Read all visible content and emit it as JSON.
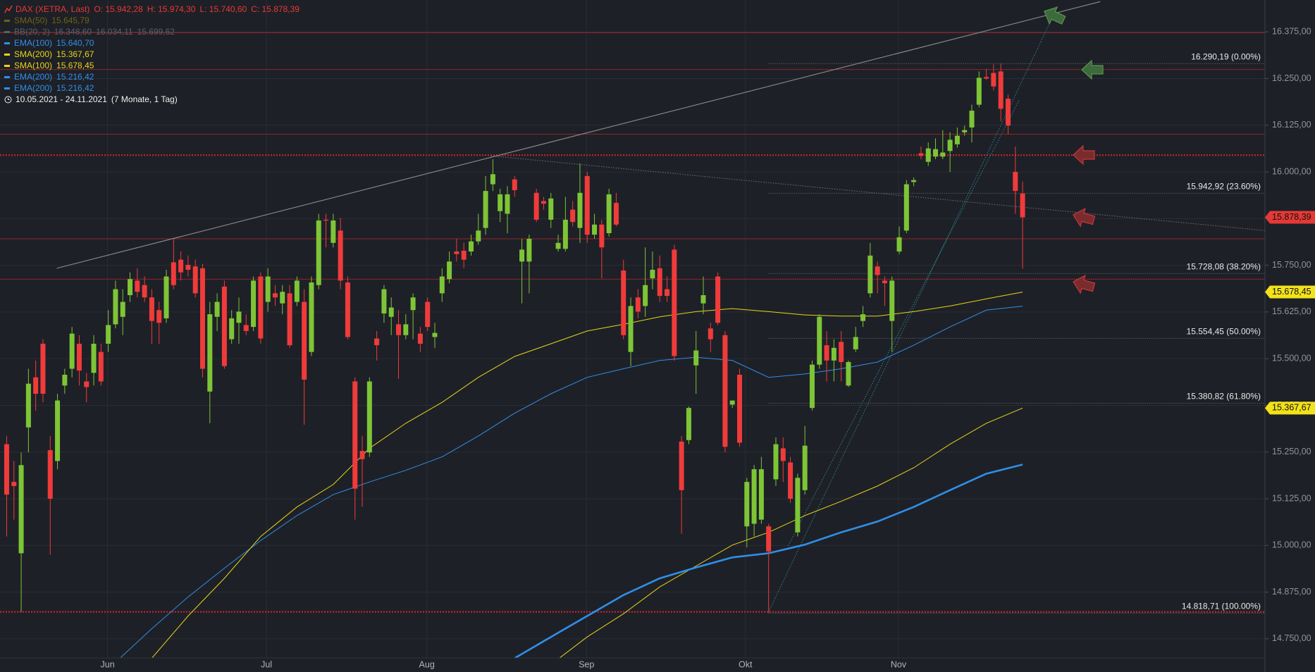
{
  "chart_data": {
    "type": "candlestick",
    "title": "DAX (XETRA, Last)",
    "header_ohlc": [
      "O: 15.942,28",
      "H: 15.974,30",
      "L: 15.740,60",
      "C: 15.878,39"
    ],
    "period": "10.05.2021 - 24.11.2021",
    "duration": "(7 Monate, 1 Tag)",
    "up_color": "#7dc536",
    "down_color": "#f03b3b",
    "grid": true,
    "xlim": [
      -0.92,
      173.4
    ],
    "ylim": [
      14698.8,
      16460.3
    ],
    "xticks": [
      {
        "value": 13.9,
        "label": "Jun"
      },
      {
        "value": 35.8,
        "label": "Jul"
      },
      {
        "value": 57.9,
        "label": "Aug"
      },
      {
        "value": 79.9,
        "label": "Sep"
      },
      {
        "value": 101.8,
        "label": "Okt"
      },
      {
        "value": 122.9,
        "label": "Nov"
      }
    ],
    "yticks": [
      {
        "value": 14750,
        "label": "14.750,00"
      },
      {
        "value": 14875,
        "label": "14.875,00"
      },
      {
        "value": 15000,
        "label": "15.000,00"
      },
      {
        "value": 15125,
        "label": "15.125,00"
      },
      {
        "value": 15250,
        "label": "15.250,00"
      },
      {
        "value": 15375,
        "label": "15.375,00"
      },
      {
        "value": 15500,
        "label": "15.500,00"
      },
      {
        "value": 15625,
        "label": "15.625,00"
      },
      {
        "value": 15750,
        "label": "15.750,00"
      },
      {
        "value": 15875,
        "label": "15.875,00"
      },
      {
        "value": 16000,
        "label": "16.000,00"
      },
      {
        "value": 16125,
        "label": "16.125,00"
      },
      {
        "value": 16250,
        "label": "16.250,00"
      },
      {
        "value": 16375,
        "label": "16.375,00"
      }
    ],
    "open": [
      15271,
      15170,
      14979,
      15316,
      15450,
      15540,
      15255,
      15226,
      15428,
      15473,
      15540,
      15439,
      15462,
      15518,
      15540,
      15592,
      15612,
      15670,
      15709,
      15697,
      15664,
      15630,
      15608,
      15758,
      15765,
      15751,
      15747,
      15742,
      15412,
      15612,
      15693,
      15552,
      15596,
      15590,
      15585,
      15720,
      15652,
      15675,
      15648,
      15675,
      15652,
      15652,
      15518,
      15697,
      15872,
      15810,
      15843,
      15704,
      15439,
      15253,
      15249,
      15554,
      15621,
      15612,
      15592,
      15563,
      15630,
      15567,
      15652,
      15558,
      15675,
      15713,
      15787,
      15789,
      15787,
      15814,
      15850,
      15967,
      15895,
      15888,
      15980,
      15760,
      15760,
      15944,
      15922,
      15872,
      15794,
      15794,
      15899,
      15850,
      15989,
      15832,
      15859,
      15836,
      15917,
      15736,
      15518,
      15664,
      15641,
      15715,
      15742,
      15686,
      15792,
      15278,
      15282,
      15482,
      15648,
      15581,
      15720,
      15563,
      15377,
      15457,
      15051,
      15058,
      15069,
      15051,
      15177,
      15260,
      15222,
      15035,
      15148,
      15368,
      15484,
      15536,
      15495,
      15545,
      15428,
      15525,
      15601,
      15675,
      15747,
      15709,
      15601,
      15787,
      15843,
      15973,
      16050,
      16027,
      16041,
      16041,
      16056,
      16074,
      16106,
      16119,
      16180,
      16254,
      16265,
      16269,
      16196,
      16000,
      15942.28
    ],
    "high": [
      15293,
      15226,
      15249,
      15473,
      15495,
      15552,
      15293,
      15406,
      15473,
      15585,
      15563,
      15462,
      15563,
      15540,
      15630,
      15709,
      15686,
      15731,
      15742,
      15720,
      15686,
      15652,
      15738,
      15821,
      15787,
      15776,
      15765,
      15754,
      15652,
      15675,
      15709,
      15630,
      15664,
      15619,
      15720,
      15731,
      15742,
      15697,
      15697,
      15697,
      15720,
      15686,
      15720,
      15888,
      15888,
      15888,
      15877,
      15720,
      15450,
      15293,
      15450,
      15574,
      15697,
      15664,
      15630,
      15619,
      15675,
      15585,
      15664,
      15596,
      15742,
      15787,
      15821,
      15810,
      15832,
      15888,
      15989,
      16034,
      15955,
      15962,
      15989,
      15821,
      15832,
      15955,
      15933,
      15944,
      15832,
      15933,
      15922,
      16023,
      16000,
      15888,
      15872,
      15955,
      15944,
      15765,
      15664,
      15686,
      15798,
      15787,
      15776,
      15720,
      15805,
      15293,
      15372,
      15574,
      15720,
      15596,
      15731,
      15574,
      15388,
      15473,
      15181,
      15215,
      15237,
      15058,
      15289,
      15289,
      15237,
      15192,
      15320,
      15495,
      15619,
      15574,
      15552,
      15574,
      15495,
      15585,
      15641,
      15810,
      15760,
      15720,
      15720,
      15854,
      15978,
      15985,
      16068,
      16079,
      16090,
      16112,
      16106,
      16119,
      16124,
      16180,
      16269,
      16276,
      16288,
      16290.19,
      16207,
      16068,
      15974.3
    ],
    "low": [
      15024,
      15069,
      14822,
      15249,
      15361,
      15383,
      14975,
      15204,
      15406,
      15450,
      15428,
      15383,
      15428,
      15428,
      15518,
      15581,
      15563,
      15652,
      15664,
      15652,
      15540,
      15540,
      15596,
      15686,
      15709,
      15720,
      15664,
      15450,
      15327,
      15574,
      15473,
      15540,
      15540,
      15563,
      15574,
      15540,
      15626,
      15641,
      15619,
      15529,
      15641,
      15323,
      15507,
      15686,
      15798,
      15798,
      15686,
      15552,
      15069,
      15103,
      15237,
      15495,
      15596,
      15563,
      15446,
      15552,
      15552,
      15518,
      15574,
      15529,
      15652,
      15702,
      15760,
      15742,
      15776,
      15805,
      15832,
      15949,
      15866,
      15836,
      15933,
      15648,
      15675,
      15866,
      15899,
      15850,
      15787,
      15787,
      15854,
      15810,
      15810,
      15821,
      15715,
      15827,
      15854,
      15552,
      15480,
      15608,
      15612,
      15686,
      15652,
      15652,
      15495,
      15031,
      15271,
      15406,
      15619,
      15518,
      15590,
      15249,
      15368,
      15264,
      14995,
      15024,
      15058,
      14819,
      15159,
      15170,
      15114,
      15024,
      15136,
      15361,
      15473,
      15439,
      15439,
      15439,
      15424,
      15518,
      15585,
      15664,
      15675,
      15641,
      15518,
      15780,
      15836,
      15962,
      16034,
      16016,
      16034,
      16034,
      16000,
      16065,
      16097,
      16079,
      16173,
      16247,
      16218,
      16135,
      16101,
      15888,
      15740.6
    ],
    "close": [
      15136,
      15159,
      15215,
      15433,
      15406,
      15406,
      15125,
      15388,
      15457,
      15567,
      15468,
      15424,
      15540,
      15439,
      15590,
      15686,
      15652,
      15713,
      15679,
      15664,
      15601,
      15596,
      15720,
      15697,
      15731,
      15738,
      15675,
      15473,
      15619,
      15652,
      15480,
      15608,
      15626,
      15574,
      15709,
      15554,
      15720,
      15664,
      15679,
      15536,
      15709,
      15444,
      15704,
      15870,
      15870,
      15870,
      15709,
      15558,
      15152,
      15231,
      15439,
      15536,
      15686,
      15637,
      15563,
      15592,
      15664,
      15540,
      15585,
      15569,
      15720,
      15760,
      15780,
      15765,
      15814,
      15843,
      15949,
      15994,
      15940,
      15940,
      15951,
      15792,
      15821,
      15872,
      15915,
      15929,
      15810,
      15872,
      15866,
      15944,
      15832,
      15859,
      15798,
      15940,
      15859,
      15563,
      15641,
      15626,
      15697,
      15738,
      15668,
      15668,
      15507,
      15148,
      15368,
      15522,
      15670,
      15552,
      15596,
      15264,
      15388,
      15275,
      15170,
      15204,
      15204,
      14984,
      15271,
      15226,
      15125,
      15181,
      15267,
      15484,
      15612,
      15495,
      15529,
      15491,
      15491,
      15558,
      15619,
      15776,
      15724,
      15702,
      15709,
      15825,
      15967,
      15978,
      16043,
      16063,
      16061,
      16052,
      16086,
      16097,
      16112,
      16164,
      16252,
      16250,
      16229,
      16169,
      16124,
      15949,
      15878.39
    ],
    "overlays": [
      {
        "name": "SMA(50)",
        "color": "#6e6214",
        "labels": [
          "15.645,79"
        ]
      },
      {
        "name": "BB(20, 2)",
        "color": "#5d5f66",
        "labels": [
          "16.348,60",
          "16.034,11",
          "15.699,62"
        ]
      },
      {
        "name": "EMA(100)",
        "color": "#2f8fe8",
        "labels": [
          "15.640,70"
        ],
        "width": 1,
        "x": [
          15,
          20,
          25,
          30,
          35,
          40,
          45,
          50,
          55,
          60,
          65,
          70,
          75,
          80,
          85,
          90,
          95,
          100,
          105,
          110,
          115,
          120,
          125,
          130,
          135,
          140
        ],
        "values": [
          14687,
          14777,
          14862,
          14939,
          15013,
          15080,
          15136,
          15170,
          15201,
          15237,
          15293,
          15354,
          15406,
          15450,
          15473,
          15495,
          15504,
          15495,
          15450,
          15459,
          15473,
          15491,
          15536,
          15585,
          15630,
          15640.7
        ]
      },
      {
        "name": "SMA(200)",
        "color": "#e6d619",
        "labels": [
          "15.367,67"
        ],
        "width": 1,
        "x": [
          75,
          80,
          85,
          90,
          95,
          100,
          105,
          110,
          115,
          120,
          125,
          130,
          135,
          140
        ],
        "values": [
          14681,
          14755,
          14817,
          14889,
          14945,
          15001,
          15035,
          15080,
          15118,
          15159,
          15208,
          15271,
          15327,
          15367.67
        ]
      },
      {
        "name": "SMA(100)",
        "color": "#e6d619",
        "labels": [
          "15.678,45"
        ],
        "width": 1,
        "x": [
          20,
          25,
          30,
          35,
          40,
          45,
          50,
          55,
          60,
          65,
          70,
          75,
          80,
          85,
          90,
          95,
          100,
          105,
          110,
          115,
          120,
          125,
          130,
          135,
          140
        ],
        "values": [
          14698,
          14811,
          14912,
          15024,
          15103,
          15163,
          15260,
          15327,
          15383,
          15450,
          15506,
          15540,
          15574,
          15592,
          15612,
          15626,
          15634,
          15626,
          15617,
          15614,
          15614,
          15626,
          15641,
          15660,
          15678.45
        ]
      },
      {
        "name": "EMA(200)",
        "color": "#2f8fe8",
        "labels": [
          "15.216,42"
        ],
        "width": 2.6,
        "x": [
          70,
          75,
          80,
          85,
          90,
          95,
          100,
          105,
          110,
          115,
          120,
          125,
          130,
          135,
          140
        ],
        "values": [
          14698,
          14755,
          14811,
          14867,
          14912,
          14941,
          14968,
          14979,
          15002,
          15035,
          15064,
          15103,
          15148,
          15192,
          15216.42
        ]
      },
      {
        "name": "EMA(200)",
        "color": "#2f8fe8",
        "labels": [
          "15.216,42"
        ]
      }
    ],
    "hlines": [
      {
        "value": 16373,
        "style": "solid"
      },
      {
        "value": 16274,
        "style": "solid"
      },
      {
        "value": 16101,
        "style": "solid"
      },
      {
        "value": 15821,
        "style": "solid"
      },
      {
        "value": 15713,
        "style": "solid"
      },
      {
        "value": 16045,
        "style": "dotted"
      },
      {
        "value": 14822,
        "style": "dotted"
      }
    ],
    "hline_color": "#b3282d",
    "trendlines": [
      {
        "x": [
          6.9,
          150.7
        ],
        "values": [
          15742,
          16456
        ],
        "style": "solid",
        "color": "#8c8c8c"
      },
      {
        "x": [
          66.7,
          173.4
        ],
        "values": [
          16043,
          15843
        ],
        "style": "dotted",
        "color": "#6c6c6c"
      },
      {
        "x": [
          105,
          144.7
        ],
        "values": [
          14822,
          16438
        ],
        "style": "dotted",
        "color": "#2a7f8a"
      },
      {
        "x": [
          107.7,
          139.5
        ],
        "values": [
          14999,
          16191
        ],
        "style": "dotted",
        "color": "#2a7f8a"
      }
    ],
    "fib": {
      "from": 105,
      "levels": [
        {
          "value": 16290.19,
          "label": "16.290,19 (0.00%)"
        },
        {
          "value": 15942.92,
          "label": "15.942,92 (23.60%)"
        },
        {
          "value": 15728.08,
          "label": "15.728,08 (38.20%)"
        },
        {
          "value": 15554.45,
          "label": "15.554,45 (50.00%)"
        },
        {
          "value": 15380.82,
          "label": "15.380,82 (61.80%)"
        },
        {
          "value": 14818.71,
          "label": "14.818,71 (100.00%)"
        }
      ]
    },
    "badges": [
      {
        "value": 15878.39,
        "label": "15.878,39",
        "color": "#e53935"
      },
      {
        "value": 15678.45,
        "label": "15.678,45",
        "color": "#f2e21a"
      },
      {
        "value": 15367.67,
        "label": "15.367,67",
        "color": "#f2e21a"
      }
    ]
  }
}
